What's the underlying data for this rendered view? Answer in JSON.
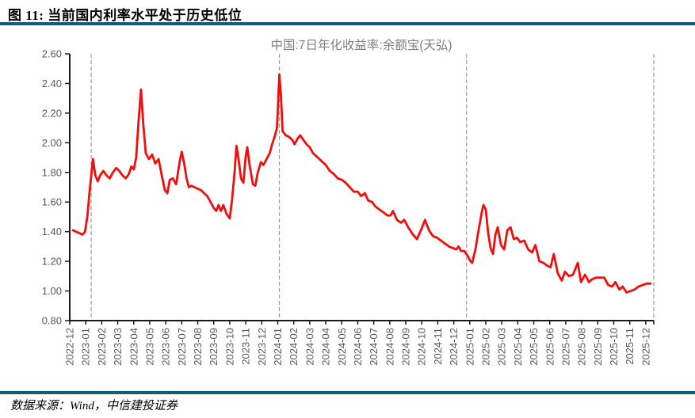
{
  "figure": {
    "title": "图 11: 当前国内利率水平处于历史低位",
    "source": "数据来源：Wind，中信建投证券"
  },
  "accent_color": "#135a7d",
  "chart_data": {
    "type": "line",
    "title": "中国:7日年化收益率:余额宝(天弘)",
    "series_name": "中国:7日年化收益率:余额宝(天弘)",
    "line_color": "#f20d0d",
    "axis_color": "#1a1a1a",
    "tick_label_color": "#595959",
    "title_color": "#7f7f7f",
    "dashed_line_color": "#9b9b9b",
    "grid": "off",
    "legend": "none",
    "ylim": [
      0.8,
      2.6
    ],
    "y_ticks": [
      0.8,
      1.0,
      1.2,
      1.4,
      1.6,
      1.8,
      2.0,
      2.2,
      2.4,
      2.6
    ],
    "x_tick_labels": [
      "2022-12",
      "2023-01",
      "2023-02",
      "2023-03",
      "2023-04",
      "2023-05",
      "2023-06",
      "2023-07",
      "2023-08",
      "2023-09",
      "2023-10",
      "2023-11",
      "2023-12",
      "2024-01",
      "2024-02",
      "2024-03",
      "2024-04",
      "2024-05",
      "2024-06",
      "2024-07",
      "2024-08",
      "2024-09",
      "2024-10",
      "2024-11",
      "2024-12",
      "2025-01",
      "2025-02",
      "2025-03",
      "2025-04",
      "2025-05",
      "2025-06",
      "2025-07",
      "2025-08",
      "2025-09",
      "2025-10",
      "2025-11",
      "2025-12"
    ],
    "x_unit": "months since 2022-12 (fractional = intra-month position)",
    "x_range_months": [
      0,
      36.5
    ],
    "dashed_vlines_months": [
      1.34,
      13.1,
      24.8,
      36.5
    ],
    "points": [
      [
        0.2,
        1.41
      ],
      [
        0.4,
        1.4
      ],
      [
        0.6,
        1.39
      ],
      [
        0.8,
        1.38
      ],
      [
        0.95,
        1.4
      ],
      [
        1.1,
        1.5
      ],
      [
        1.25,
        1.68
      ],
      [
        1.45,
        1.89
      ],
      [
        1.6,
        1.78
      ],
      [
        1.75,
        1.74
      ],
      [
        1.9,
        1.78
      ],
      [
        2.1,
        1.81
      ],
      [
        2.3,
        1.78
      ],
      [
        2.5,
        1.76
      ],
      [
        2.7,
        1.8
      ],
      [
        2.9,
        1.83
      ],
      [
        3.1,
        1.81
      ],
      [
        3.3,
        1.78
      ],
      [
        3.5,
        1.76
      ],
      [
        3.7,
        1.79
      ],
      [
        3.85,
        1.84
      ],
      [
        4.0,
        1.82
      ],
      [
        4.15,
        1.9
      ],
      [
        4.3,
        2.14
      ],
      [
        4.45,
        2.36
      ],
      [
        4.6,
        2.12
      ],
      [
        4.75,
        1.93
      ],
      [
        4.95,
        1.89
      ],
      [
        5.15,
        1.92
      ],
      [
        5.35,
        1.86
      ],
      [
        5.55,
        1.89
      ],
      [
        5.75,
        1.78
      ],
      [
        5.95,
        1.68
      ],
      [
        6.1,
        1.66
      ],
      [
        6.25,
        1.75
      ],
      [
        6.45,
        1.76
      ],
      [
        6.65,
        1.72
      ],
      [
        6.85,
        1.86
      ],
      [
        7.0,
        1.94
      ],
      [
        7.15,
        1.86
      ],
      [
        7.3,
        1.76
      ],
      [
        7.45,
        1.7
      ],
      [
        7.6,
        1.71
      ],
      [
        7.8,
        1.7
      ],
      [
        8.0,
        1.69
      ],
      [
        8.2,
        1.68
      ],
      [
        8.4,
        1.66
      ],
      [
        8.6,
        1.64
      ],
      [
        8.8,
        1.6
      ],
      [
        9.0,
        1.56
      ],
      [
        9.15,
        1.54
      ],
      [
        9.3,
        1.58
      ],
      [
        9.45,
        1.54
      ],
      [
        9.6,
        1.58
      ],
      [
        9.8,
        1.52
      ],
      [
        10.0,
        1.49
      ],
      [
        10.15,
        1.62
      ],
      [
        10.3,
        1.8
      ],
      [
        10.42,
        1.98
      ],
      [
        10.55,
        1.89
      ],
      [
        10.7,
        1.76
      ],
      [
        10.85,
        1.73
      ],
      [
        11.0,
        1.91
      ],
      [
        11.1,
        1.97
      ],
      [
        11.25,
        1.84
      ],
      [
        11.45,
        1.72
      ],
      [
        11.6,
        1.71
      ],
      [
        11.75,
        1.8
      ],
      [
        11.95,
        1.87
      ],
      [
        12.1,
        1.85
      ],
      [
        12.3,
        1.89
      ],
      [
        12.5,
        1.93
      ],
      [
        12.65,
        1.99
      ],
      [
        12.8,
        2.04
      ],
      [
        12.95,
        2.1
      ],
      [
        13.1,
        2.46
      ],
      [
        13.2,
        2.32
      ],
      [
        13.3,
        2.08
      ],
      [
        13.5,
        2.05
      ],
      [
        13.7,
        2.04
      ],
      [
        13.9,
        2.02
      ],
      [
        14.05,
        1.99
      ],
      [
        14.25,
        2.03
      ],
      [
        14.4,
        2.05
      ],
      [
        14.6,
        2.02
      ],
      [
        14.8,
        1.99
      ],
      [
        15.0,
        1.97
      ],
      [
        15.2,
        1.93
      ],
      [
        15.4,
        1.91
      ],
      [
        15.6,
        1.89
      ],
      [
        15.8,
        1.87
      ],
      [
        16.0,
        1.85
      ],
      [
        16.25,
        1.81
      ],
      [
        16.5,
        1.79
      ],
      [
        16.75,
        1.76
      ],
      [
        17.0,
        1.75
      ],
      [
        17.25,
        1.73
      ],
      [
        17.5,
        1.7
      ],
      [
        17.75,
        1.67
      ],
      [
        18.0,
        1.67
      ],
      [
        18.2,
        1.64
      ],
      [
        18.45,
        1.66
      ],
      [
        18.65,
        1.61
      ],
      [
        18.9,
        1.6
      ],
      [
        19.1,
        1.57
      ],
      [
        19.35,
        1.55
      ],
      [
        19.6,
        1.53
      ],
      [
        19.85,
        1.51
      ],
      [
        20.05,
        1.51
      ],
      [
        20.2,
        1.54
      ],
      [
        20.45,
        1.48
      ],
      [
        20.7,
        1.46
      ],
      [
        20.9,
        1.48
      ],
      [
        21.15,
        1.43
      ],
      [
        21.45,
        1.38
      ],
      [
        21.7,
        1.35
      ],
      [
        21.95,
        1.41
      ],
      [
        22.2,
        1.48
      ],
      [
        22.45,
        1.41
      ],
      [
        22.7,
        1.37
      ],
      [
        22.95,
        1.36
      ],
      [
        23.2,
        1.34
      ],
      [
        23.45,
        1.32
      ],
      [
        23.7,
        1.3
      ],
      [
        23.95,
        1.29
      ],
      [
        24.15,
        1.28
      ],
      [
        24.3,
        1.3
      ],
      [
        24.45,
        1.27
      ],
      [
        24.65,
        1.27
      ],
      [
        24.85,
        1.24
      ],
      [
        25.05,
        1.2
      ],
      [
        25.15,
        1.19
      ],
      [
        25.35,
        1.28
      ],
      [
        25.55,
        1.41
      ],
      [
        25.75,
        1.53
      ],
      [
        25.85,
        1.58
      ],
      [
        26.0,
        1.55
      ],
      [
        26.15,
        1.39
      ],
      [
        26.3,
        1.29
      ],
      [
        26.45,
        1.25
      ],
      [
        26.6,
        1.38
      ],
      [
        26.75,
        1.43
      ],
      [
        26.95,
        1.31
      ],
      [
        27.15,
        1.28
      ],
      [
        27.35,
        1.41
      ],
      [
        27.55,
        1.43
      ],
      [
        27.75,
        1.35
      ],
      [
        27.95,
        1.36
      ],
      [
        28.15,
        1.33
      ],
      [
        28.4,
        1.34
      ],
      [
        28.65,
        1.28
      ],
      [
        28.9,
        1.26
      ],
      [
        29.1,
        1.31
      ],
      [
        29.35,
        1.2
      ],
      [
        29.6,
        1.19
      ],
      [
        29.85,
        1.17
      ],
      [
        30.05,
        1.16
      ],
      [
        30.25,
        1.25
      ],
      [
        30.5,
        1.12
      ],
      [
        30.75,
        1.07
      ],
      [
        30.95,
        1.13
      ],
      [
        31.2,
        1.1
      ],
      [
        31.45,
        1.11
      ],
      [
        31.75,
        1.19
      ],
      [
        31.95,
        1.06
      ],
      [
        32.2,
        1.11
      ],
      [
        32.45,
        1.06
      ],
      [
        32.65,
        1.08
      ],
      [
        32.9,
        1.09
      ],
      [
        33.15,
        1.09
      ],
      [
        33.4,
        1.09
      ],
      [
        33.65,
        1.04
      ],
      [
        33.9,
        1.03
      ],
      [
        34.1,
        1.06
      ],
      [
        34.35,
        1.01
      ],
      [
        34.55,
        1.03
      ],
      [
        34.8,
        0.99
      ],
      [
        35.05,
        1.0
      ],
      [
        35.3,
        1.01
      ],
      [
        35.55,
        1.03
      ],
      [
        35.8,
        1.04
      ],
      [
        36.05,
        1.05
      ],
      [
        36.3,
        1.05
      ]
    ]
  }
}
